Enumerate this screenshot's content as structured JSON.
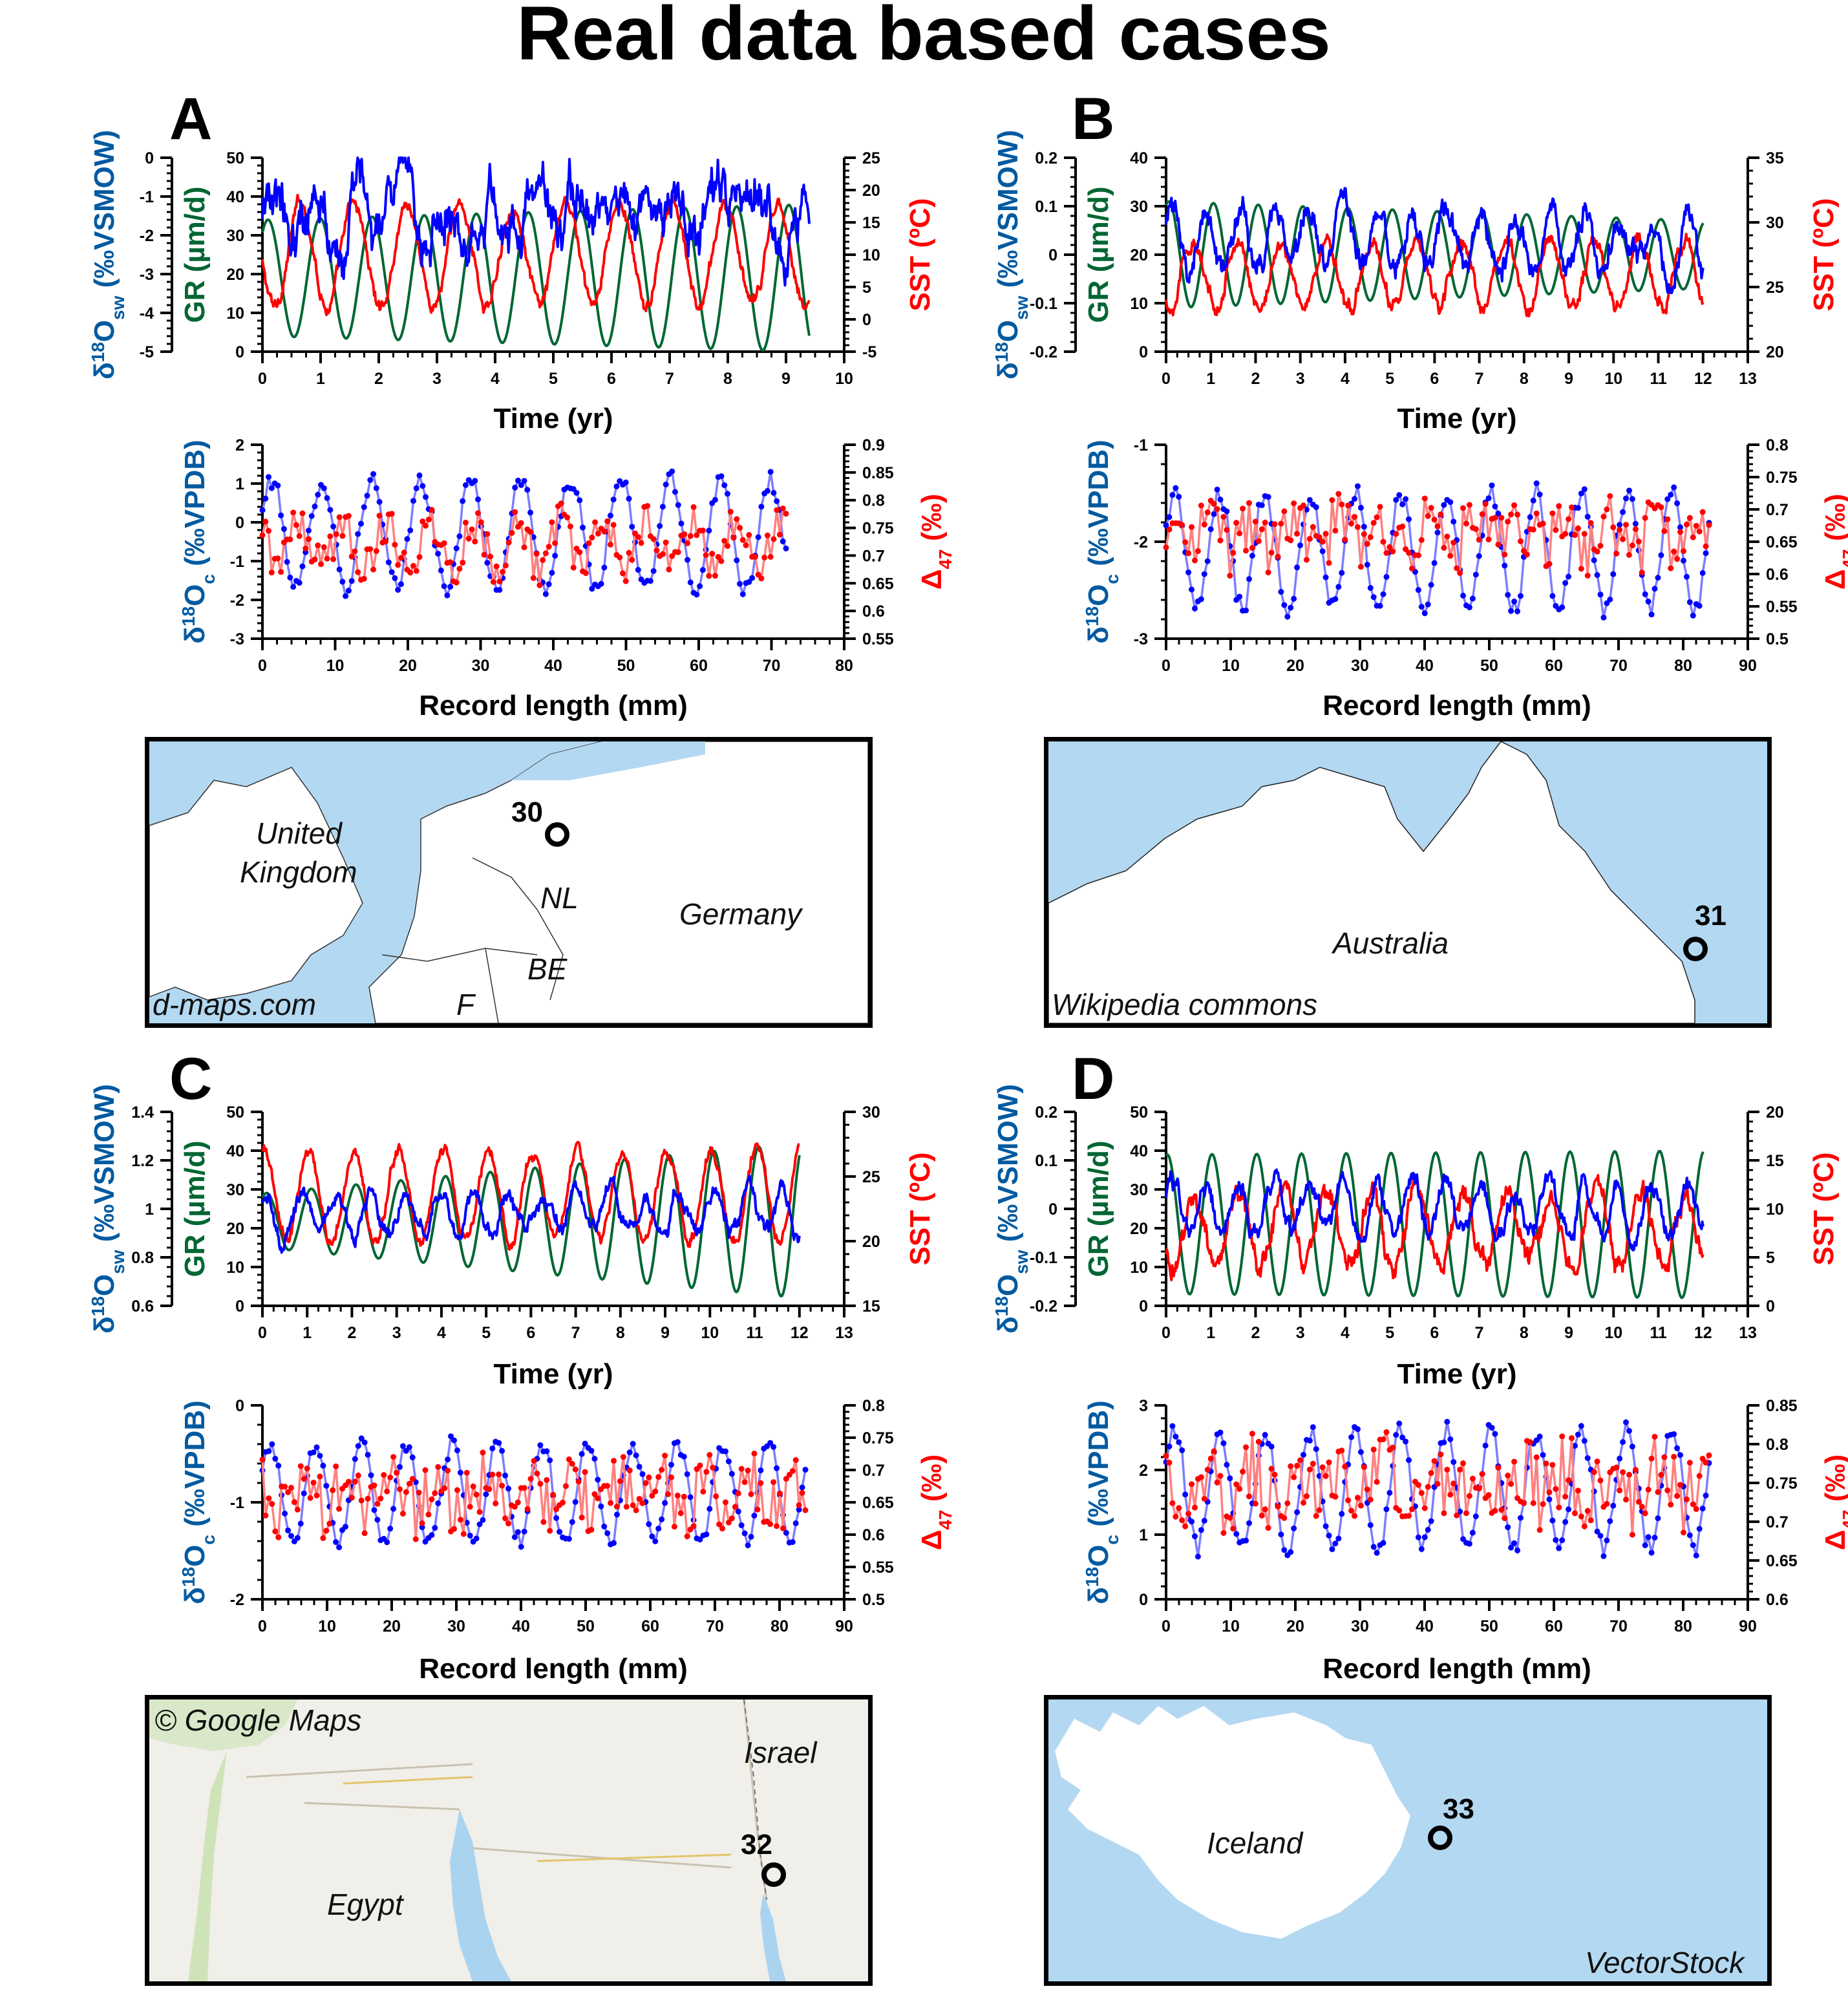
{
  "figure_title": "Real data based cases",
  "panels": [
    {
      "letter": "A",
      "map": {
        "credit": "d-maps.com",
        "site": "30",
        "labels": [
          "United Kingdom",
          "NL",
          "Germany",
          "BE",
          "F"
        ],
        "colors": {
          "sea": "#b3d8f2",
          "land": "#ffffff"
        }
      }
    },
    {
      "letter": "B",
      "map": {
        "credit": "Wikipedia commons",
        "site": "31",
        "labels": [
          "Australia"
        ],
        "colors": {
          "sea": "#b3d8f2",
          "land": "#ffffff"
        }
      }
    },
    {
      "letter": "C",
      "map": {
        "credit": "© Google Maps",
        "site": "32",
        "labels": [
          "Israel",
          "Egypt"
        ],
        "colors": {
          "sea": "#aad3f0",
          "land": "#f1efe9"
        }
      }
    },
    {
      "letter": "D",
      "map": {
        "credit": "VectorStock",
        "site": "33",
        "labels": [
          "Iceland"
        ],
        "colors": {
          "sea": "#b3d8f2",
          "land": "#ffffff"
        }
      }
    }
  ],
  "axis_text": {
    "time_xlabel": "Time (yr)",
    "length_xlabel": "Record length (mm)",
    "d18Osw_label": "δ18Osw (‰VSMOW)",
    "gr_label": "GR (µm/d)",
    "sst_label": "SST (ºC)",
    "d18Oc_label": "δ18Oc (‰VPDB)",
    "d47_label": "Δ47 (‰)"
  },
  "colors": {
    "d18Osw": "#0000ff",
    "gr": "#006633",
    "sst": "#ff0000",
    "d18Oc_line": "#7d7dff",
    "d18Oc_dot": "#0000ff",
    "d47_line": "#ff8080",
    "d47_dot": "#ff0000",
    "axis_blue": "#005aa0",
    "axis_green": "#006633",
    "axis_red": "#ff0000"
  },
  "chart_data": [
    {
      "panel": "A",
      "type": "line",
      "title": "",
      "xlabel": "Time (yr)",
      "xlim": [
        0,
        10
      ],
      "xticks": [
        0,
        1,
        2,
        3,
        4,
        5,
        6,
        7,
        8,
        9,
        10
      ],
      "axes": {
        "d18Osw": {
          "lim": [
            -5,
            0
          ],
          "ticks": [
            0,
            -1,
            -2,
            -3,
            -4,
            -5
          ]
        },
        "gr": {
          "lim": [
            0,
            50
          ],
          "ticks": [
            0,
            10,
            20,
            30,
            40,
            50
          ]
        },
        "sst": {
          "lim": [
            -5,
            25
          ],
          "ticks": [
            -5,
            0,
            5,
            10,
            15,
            20,
            25
          ]
        }
      },
      "series": [
        {
          "name": "GR",
          "axis": "gr",
          "x_end": 9.4,
          "cycles": 10.5,
          "phase": 0.9,
          "mean": 19,
          "amp_start": 15,
          "amp_end": 19
        },
        {
          "name": "SST",
          "axis": "sst",
          "x_end": 9.4,
          "cycles": 10.3,
          "phase": 3.3,
          "mean": 10,
          "amp": 8,
          "noise": 0.8
        },
        {
          "name": "d18Osw",
          "axis": "d18Osw",
          "x_end": 9.4,
          "mean": -1.35,
          "amp": 0.35,
          "noise": 0.9
        }
      ]
    },
    {
      "panel": "A",
      "type": "scatter",
      "title": "",
      "xlabel": "Record length (mm)",
      "xlim": [
        0,
        80
      ],
      "xticks": [
        0,
        10,
        20,
        30,
        40,
        50,
        60,
        70,
        80
      ],
      "axes": {
        "d18Oc": {
          "lim": [
            -3,
            2
          ],
          "ticks": [
            2,
            1,
            0,
            -1,
            -2,
            -3
          ]
        },
        "d47": {
          "lim": [
            0.55,
            0.9
          ],
          "ticks": [
            0.55,
            0.6,
            0.65,
            0.7,
            0.75,
            0.8,
            0.85,
            0.9
          ]
        }
      },
      "series": [
        {
          "name": "d18Oc",
          "axis": "d18Oc",
          "x_end": 72,
          "cycles": 10.5,
          "mean": -0.3,
          "amp": 1.4
        },
        {
          "name": "D47",
          "axis": "d47",
          "x_end": 72,
          "mean": 0.72,
          "amp": 0.04,
          "noise": 0.03
        }
      ]
    },
    {
      "panel": "B",
      "type": "line",
      "title": "",
      "xlabel": "Time (yr)",
      "xlim": [
        0,
        13
      ],
      "xticks": [
        0,
        1,
        2,
        3,
        4,
        5,
        6,
        7,
        8,
        9,
        10,
        11,
        12,
        13
      ],
      "axes": {
        "d18Osw": {
          "lim": [
            -0.2,
            0.2
          ],
          "ticks": [
            0.2,
            0.1,
            0,
            -0.1,
            -0.2
          ]
        },
        "gr": {
          "lim": [
            0,
            40
          ],
          "ticks": [
            0,
            10,
            20,
            30,
            40
          ]
        },
        "sst": {
          "lim": [
            20,
            35
          ],
          "ticks": [
            20,
            25,
            30,
            35
          ]
        }
      },
      "series": [
        {
          "name": "GR",
          "axis": "gr",
          "x_end": 12,
          "cycles": 12,
          "phase": 1.2,
          "mean": 20,
          "amp_start": 11,
          "amp_end": 7
        },
        {
          "name": "SST",
          "axis": "sst",
          "x_end": 12,
          "cycles": 12,
          "phase": 4.2,
          "mean": 26,
          "amp": 2.5,
          "noise": 0.45
        },
        {
          "name": "d18Osw",
          "axis": "d18Osw",
          "x_end": 12,
          "mean": 0.03,
          "amp": 0.06,
          "noise": 0.04
        }
      ]
    },
    {
      "panel": "B",
      "type": "scatter",
      "title": "",
      "xlabel": "Record length (mm)",
      "xlim": [
        0,
        90
      ],
      "xticks": [
        0,
        10,
        20,
        30,
        40,
        50,
        60,
        70,
        80,
        90
      ],
      "axes": {
        "d18Oc": {
          "lim": [
            -3,
            -1
          ],
          "ticks": [
            -1,
            -2,
            -3
          ]
        },
        "d47": {
          "lim": [
            0.5,
            0.8
          ],
          "ticks": [
            0.5,
            0.55,
            0.6,
            0.65,
            0.7,
            0.75,
            0.8
          ]
        }
      },
      "series": [
        {
          "name": "d18Oc",
          "axis": "d18Oc",
          "x_end": 84,
          "cycles": 12,
          "mean": -2.1,
          "amp": 0.6
        },
        {
          "name": "D47",
          "axis": "d47",
          "x_end": 84,
          "mean": 0.66,
          "amp": 0.02,
          "noise": 0.04
        }
      ]
    },
    {
      "panel": "C",
      "type": "line",
      "title": "",
      "xlabel": "Time (yr)",
      "xlim": [
        0,
        13
      ],
      "xticks": [
        0,
        1,
        2,
        3,
        4,
        5,
        6,
        7,
        8,
        9,
        10,
        11,
        12,
        13
      ],
      "axes": {
        "d18Osw": {
          "lim": [
            0.6,
            1.4
          ],
          "ticks": [
            1.4,
            1.2,
            1,
            0.8,
            0.6
          ]
        },
        "gr": {
          "lim": [
            0,
            50
          ],
          "ticks": [
            0,
            10,
            20,
            30,
            40,
            50
          ]
        },
        "sst": {
          "lim": [
            15,
            30
          ],
          "ticks": [
            15,
            20,
            25,
            30
          ]
        }
      },
      "series": [
        {
          "name": "GR",
          "axis": "gr",
          "x_end": 12,
          "cycles": 12,
          "phase": 1.0,
          "mean": 22,
          "amp_start": 7,
          "amp_end": 20
        },
        {
          "name": "SST",
          "axis": "sst",
          "x_end": 12,
          "cycles": 12,
          "phase": 1.3,
          "mean": 23.5,
          "amp": 3.5,
          "noise": 0.35
        },
        {
          "name": "d18Osw",
          "axis": "d18Osw",
          "x_end": 12,
          "mean": 0.98,
          "amp": 0.08,
          "noise": 0.05
        }
      ]
    },
    {
      "panel": "C",
      "type": "scatter",
      "title": "",
      "xlabel": "Record length (mm)",
      "xlim": [
        0,
        90
      ],
      "xticks": [
        0,
        10,
        20,
        30,
        40,
        50,
        60,
        70,
        80,
        90
      ],
      "axes": {
        "d18Oc": {
          "lim": [
            -2,
            0
          ],
          "ticks": [
            0,
            -1,
            -2
          ]
        },
        "d47": {
          "lim": [
            0.5,
            0.8
          ],
          "ticks": [
            0.5,
            0.55,
            0.6,
            0.65,
            0.7,
            0.75,
            0.8
          ]
        }
      },
      "series": [
        {
          "name": "d18Oc",
          "axis": "d18Oc",
          "x_end": 84,
          "cycles": 12,
          "mean": -0.9,
          "amp": 0.5
        },
        {
          "name": "D47",
          "axis": "d47",
          "x_end": 84,
          "mean": 0.66,
          "amp": 0.02,
          "noise": 0.04
        }
      ]
    },
    {
      "panel": "D",
      "type": "line",
      "title": "",
      "xlabel": "Time (yr)",
      "xlim": [
        0,
        13
      ],
      "xticks": [
        0,
        1,
        2,
        3,
        4,
        5,
        6,
        7,
        8,
        9,
        10,
        11,
        12,
        13
      ],
      "axes": {
        "d18Osw": {
          "lim": [
            -0.2,
            0.2
          ],
          "ticks": [
            0.2,
            0.1,
            0,
            -0.1,
            -0.2
          ]
        },
        "gr": {
          "lim": [
            0,
            50
          ],
          "ticks": [
            0,
            10,
            20,
            30,
            40,
            50
          ]
        },
        "sst": {
          "lim": [
            0,
            20
          ],
          "ticks": [
            0,
            5,
            10,
            15,
            20
          ]
        }
      },
      "series": [
        {
          "name": "GR",
          "axis": "gr",
          "x_end": 12,
          "cycles": 12,
          "phase": 1.4,
          "mean": 21,
          "amp_start": 18,
          "amp_end": 19
        },
        {
          "name": "SST",
          "axis": "sst",
          "x_end": 12,
          "cycles": 12,
          "phase": 4.0,
          "mean": 8,
          "amp": 3.5,
          "noise": 0.9
        },
        {
          "name": "d18Osw",
          "axis": "d18Osw",
          "x_end": 12,
          "mean": 0.0,
          "amp": 0.05,
          "noise": 0.03
        }
      ]
    },
    {
      "panel": "D",
      "type": "scatter",
      "title": "",
      "xlabel": "Record length (mm)",
      "xlim": [
        0,
        90
      ],
      "xticks": [
        0,
        10,
        20,
        30,
        40,
        50,
        60,
        70,
        80,
        90
      ],
      "axes": {
        "d18Oc": {
          "lim": [
            0,
            3
          ],
          "ticks": [
            3,
            2,
            1,
            0
          ]
        },
        "d47": {
          "lim": [
            0.6,
            0.85
          ],
          "ticks": [
            0.6,
            0.65,
            0.7,
            0.75,
            0.8,
            0.85
          ]
        }
      },
      "series": [
        {
          "name": "d18Oc",
          "axis": "d18Oc",
          "x_end": 84,
          "cycles": 12,
          "mean": 1.7,
          "amp": 0.9
        },
        {
          "name": "D47",
          "axis": "d47",
          "x_end": 84,
          "mean": 0.75,
          "amp": 0.02,
          "noise": 0.04
        }
      ]
    }
  ]
}
